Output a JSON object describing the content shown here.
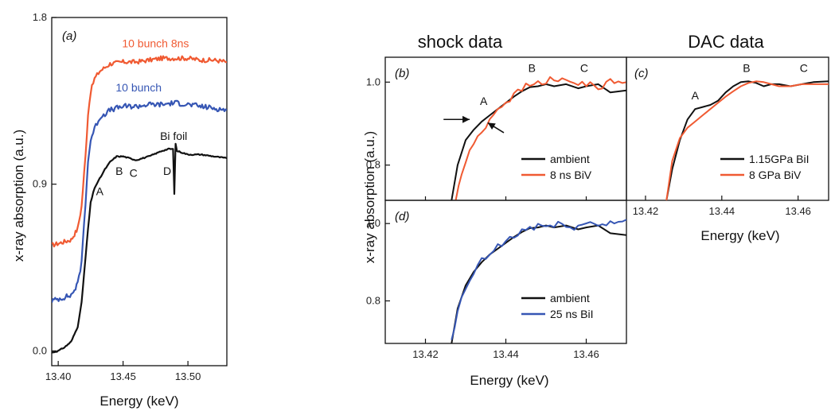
{
  "headings": {
    "shock": "shock data",
    "dac": "DAC data"
  },
  "colors": {
    "black": "#111111",
    "red": "#f05a32",
    "blue": "#3656b4"
  },
  "chart_data": [
    {
      "id": "a",
      "type": "line",
      "panel_label": "(a)",
      "xlabel": "Energy (keV)",
      "ylabel": "x-ray absorption (a.u.)",
      "xlim": [
        13.395,
        13.53
      ],
      "ylim": [
        -0.08,
        1.8
      ],
      "xticks": [
        13.4,
        13.45,
        13.5
      ],
      "xtick_labels": [
        "13.40",
        "13.45",
        "13.50"
      ],
      "yticks": [
        0.0,
        0.9,
        1.8
      ],
      "ytick_labels": [
        "0.0",
        "0.9",
        "1.8"
      ],
      "series": [
        {
          "name": "10 bunch 8ns",
          "color": "red",
          "noise": 0.012,
          "x": [
            13.395,
            13.41,
            13.415,
            13.418,
            13.421,
            13.423,
            13.425,
            13.428,
            13.432,
            13.436,
            13.44,
            13.45,
            13.46,
            13.47,
            13.48,
            13.49,
            13.5,
            13.51,
            13.52,
            13.53
          ],
          "y": [
            0.57,
            0.6,
            0.66,
            0.78,
            1.05,
            1.28,
            1.4,
            1.47,
            1.51,
            1.53,
            1.55,
            1.56,
            1.56,
            1.57,
            1.58,
            1.58,
            1.58,
            1.57,
            1.57,
            1.56
          ]
        },
        {
          "name": "10 bunch",
          "color": "blue",
          "noise": 0.014,
          "x": [
            13.395,
            13.41,
            13.415,
            13.418,
            13.421,
            13.423,
            13.425,
            13.428,
            13.432,
            13.436,
            13.44,
            13.45,
            13.46,
            13.47,
            13.48,
            13.49,
            13.5,
            13.51,
            13.52,
            13.53
          ],
          "y": [
            0.27,
            0.3,
            0.36,
            0.48,
            0.8,
            1.02,
            1.14,
            1.2,
            1.26,
            1.28,
            1.3,
            1.32,
            1.32,
            1.33,
            1.33,
            1.34,
            1.33,
            1.32,
            1.31,
            1.3
          ]
        },
        {
          "name": "Bi foil",
          "color": "black",
          "noise": 0.003,
          "x": [
            13.395,
            13.4,
            13.405,
            13.41,
            13.415,
            13.418,
            13.42,
            13.423,
            13.425,
            13.428,
            13.432,
            13.436,
            13.44,
            13.445,
            13.45,
            13.455,
            13.46,
            13.47,
            13.48,
            13.485,
            13.4885,
            13.4895,
            13.4905,
            13.4915,
            13.5,
            13.51,
            13.52,
            13.53
          ],
          "y": [
            -0.01,
            0.0,
            0.02,
            0.05,
            0.13,
            0.26,
            0.42,
            0.66,
            0.8,
            0.88,
            0.93,
            0.98,
            1.02,
            1.05,
            1.05,
            1.04,
            1.03,
            1.05,
            1.08,
            1.09,
            1.09,
            0.85,
            1.12,
            1.08,
            1.06,
            1.06,
            1.05,
            1.04
          ]
        }
      ],
      "series_labels": [
        {
          "text": "10 bunch 8ns",
          "color": "red",
          "x": 13.475,
          "y": 1.64
        },
        {
          "text": "10 bunch",
          "color": "blue",
          "x": 13.462,
          "y": 1.4
        },
        {
          "text": "Bi foil",
          "color": "black",
          "x": 13.489,
          "y": 1.14
        }
      ],
      "annotations": [
        {
          "text": "A",
          "x": 13.432,
          "y": 0.84
        },
        {
          "text": "B",
          "x": 13.447,
          "y": 0.95
        },
        {
          "text": "C",
          "x": 13.458,
          "y": 0.94
        },
        {
          "text": "D",
          "x": 13.484,
          "y": 0.95
        }
      ]
    },
    {
      "id": "b",
      "type": "line",
      "panel_label": "(b)",
      "xlim": [
        13.41,
        13.47
      ],
      "ylim": [
        0.715,
        1.06
      ],
      "yticks": [
        0.8,
        1.0
      ],
      "ytick_labels": [
        "0.8",
        "1.0"
      ],
      "series": [
        {
          "name": "ambient",
          "color": "black",
          "noise": 0.0,
          "x": [
            13.4265,
            13.428,
            13.43,
            13.432,
            13.434,
            13.436,
            13.438,
            13.44,
            13.442,
            13.444,
            13.446,
            13.448,
            13.45,
            13.452,
            13.455,
            13.458,
            13.46,
            13.463,
            13.466,
            13.47
          ],
          "y": [
            0.715,
            0.8,
            0.86,
            0.885,
            0.905,
            0.92,
            0.935,
            0.95,
            0.965,
            0.978,
            0.988,
            0.99,
            0.995,
            0.99,
            0.995,
            0.985,
            0.99,
            0.995,
            0.975,
            0.98
          ]
        },
        {
          "name": "8 ns  BiV",
          "color": "red",
          "noise": 0.008,
          "x": [
            13.4275,
            13.429,
            13.431,
            13.433,
            13.435,
            13.437,
            13.439,
            13.441,
            13.443,
            13.445,
            13.447,
            13.449,
            13.451,
            13.453,
            13.455,
            13.457,
            13.459,
            13.461,
            13.463,
            13.465,
            13.468,
            13.47
          ],
          "y": [
            0.715,
            0.78,
            0.83,
            0.87,
            0.895,
            0.925,
            0.945,
            0.96,
            0.975,
            0.99,
            0.995,
            1.0,
            1.005,
            1.0,
            1.01,
            0.995,
            0.995,
            1.0,
            0.985,
            1.0,
            1.0,
            1.0
          ]
        }
      ],
      "legend": {
        "position": "bottom-right"
      },
      "annotations": [
        {
          "text": "A",
          "x": 13.4345,
          "y": 0.945
        },
        {
          "text": "B",
          "x": 13.4465,
          "y": 1.025
        },
        {
          "text": "C",
          "x": 13.4595,
          "y": 1.025
        }
      ],
      "arrows": [
        {
          "from": [
            13.4245,
            0.91
          ],
          "to": [
            13.431,
            0.91
          ]
        },
        {
          "from": [
            13.4395,
            0.878
          ],
          "to": [
            13.4355,
            0.902
          ]
        }
      ]
    },
    {
      "id": "c",
      "type": "line",
      "panel_label": "(c)",
      "xlabel": "Energy (keV)",
      "xlim": [
        13.415,
        13.468
      ],
      "ylim": [
        0.715,
        1.06
      ],
      "xticks": [
        13.42,
        13.44,
        13.46
      ],
      "xtick_labels": [
        "13.42",
        "13.44",
        "13.46"
      ],
      "series": [
        {
          "name": "1.15GPa  BiI",
          "color": "black",
          "noise": 0.0,
          "x": [
            13.4255,
            13.427,
            13.429,
            13.431,
            13.433,
            13.435,
            13.437,
            13.439,
            13.441,
            13.443,
            13.445,
            13.447,
            13.449,
            13.451,
            13.453,
            13.455,
            13.458,
            13.461,
            13.464,
            13.468
          ],
          "y": [
            0.715,
            0.79,
            0.86,
            0.91,
            0.935,
            0.94,
            0.945,
            0.955,
            0.975,
            0.99,
            1.0,
            1.002,
            0.998,
            0.99,
            0.995,
            0.995,
            0.99,
            0.995,
            1.0,
            1.002
          ]
        },
        {
          "name": "8 GPa  BiV",
          "color": "red",
          "noise": 0.0,
          "x": [
            13.4255,
            13.427,
            13.429,
            13.431,
            13.433,
            13.435,
            13.437,
            13.439,
            13.441,
            13.443,
            13.445,
            13.447,
            13.449,
            13.451,
            13.453,
            13.455,
            13.458,
            13.461,
            13.464,
            13.468
          ],
          "y": [
            0.715,
            0.81,
            0.865,
            0.89,
            0.905,
            0.92,
            0.935,
            0.95,
            0.965,
            0.978,
            0.99,
            0.998,
            1.002,
            1.0,
            0.995,
            0.99,
            0.99,
            0.995,
            0.995,
            0.995
          ]
        }
      ],
      "legend": {
        "position": "bottom-right"
      },
      "annotations": [
        {
          "text": "A",
          "x": 13.433,
          "y": 0.958
        },
        {
          "text": "B",
          "x": 13.4465,
          "y": 1.025
        },
        {
          "text": "C",
          "x": 13.4615,
          "y": 1.025
        }
      ]
    },
    {
      "id": "d",
      "type": "line",
      "panel_label": "(d)",
      "xlabel": "Energy (keV)",
      "xlim": [
        13.41,
        13.47
      ],
      "ylim": [
        0.69,
        1.06
      ],
      "xticks": [
        13.42,
        13.44,
        13.46
      ],
      "xtick_labels": [
        "13.42",
        "13.44",
        "13.46"
      ],
      "yticks": [
        0.8,
        1.0
      ],
      "ytick_labels": [
        "0.8",
        "1.0"
      ],
      "series": [
        {
          "name": "ambient",
          "color": "black",
          "noise": 0.0,
          "x": [
            13.4265,
            13.428,
            13.43,
            13.432,
            13.434,
            13.436,
            13.438,
            13.44,
            13.442,
            13.444,
            13.446,
            13.448,
            13.45,
            13.452,
            13.455,
            13.458,
            13.46,
            13.463,
            13.466,
            13.47
          ],
          "y": [
            0.69,
            0.78,
            0.84,
            0.875,
            0.9,
            0.92,
            0.935,
            0.95,
            0.965,
            0.978,
            0.988,
            0.99,
            0.995,
            0.99,
            0.995,
            0.985,
            0.99,
            0.995,
            0.975,
            0.97
          ]
        },
        {
          "name": "25 ns  BiI",
          "color": "blue",
          "noise": 0.012,
          "x": [
            13.4265,
            13.428,
            13.43,
            13.432,
            13.434,
            13.436,
            13.438,
            13.44,
            13.442,
            13.444,
            13.446,
            13.448,
            13.45,
            13.452,
            13.455,
            13.458,
            13.46,
            13.463,
            13.466,
            13.47
          ],
          "y": [
            0.69,
            0.77,
            0.83,
            0.875,
            0.9,
            0.92,
            0.94,
            0.955,
            0.965,
            0.98,
            0.99,
            0.995,
            0.995,
            0.99,
            1.0,
            0.99,
            1.0,
            1.0,
            1.0,
            1.01
          ]
        }
      ],
      "legend": {
        "position": "bottom-right"
      }
    }
  ]
}
